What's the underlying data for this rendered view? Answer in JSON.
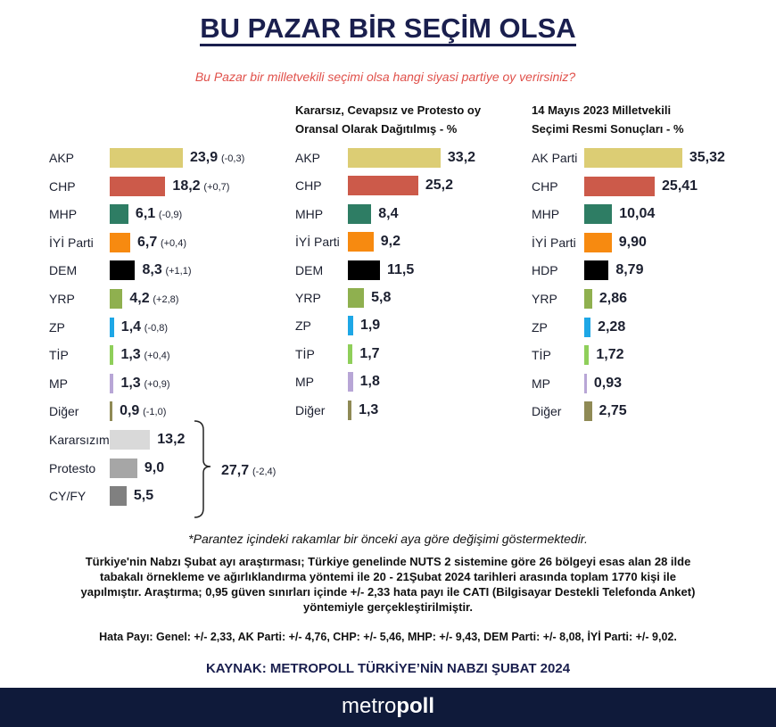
{
  "header": {
    "title": "BU PAZAR BİR SEÇİM OLSA",
    "question": "Bu Pazar bir milletvekili seçimi olsa hangi siyasi partiye oy verirsiniz?"
  },
  "chart_data": [
    {
      "type": "bar",
      "categories": [
        "AKP",
        "CHP",
        "MHP",
        "İYİ Parti",
        "DEM",
        "YRP",
        "ZP",
        "TİP",
        "MP",
        "Diğer",
        "Kararsızım",
        "Protesto",
        "CY/FY"
      ],
      "values": [
        23.9,
        18.2,
        6.1,
        6.7,
        8.3,
        4.2,
        1.4,
        1.3,
        1.3,
        0.9,
        13.2,
        9.0,
        5.5
      ],
      "value_labels": [
        "23,9",
        "18,2",
        "6,1",
        "6,7",
        "8,3",
        "4,2",
        "1,4",
        "1,3",
        "1,3",
        "0,9",
        "13,2",
        "9,0",
        "5,5"
      ],
      "changes": [
        "(-0,3)",
        "(+0,7)",
        "(-0,9)",
        "(+0,4)",
        "(+1,1)",
        "(+2,8)",
        "(-0,8)",
        "(+0,4)",
        "(+0,9)",
        "(-1,0)",
        null,
        null,
        null
      ],
      "colors": [
        "#dccd74",
        "#cc5a4a",
        "#2e7d64",
        "#f78a10",
        "#000000",
        "#8fb04f",
        "#1ea7e6",
        "#8fcf5a",
        "#b8a6d6",
        "#8f8a55",
        "#d9d9d9",
        "#a6a6a6",
        "#808080"
      ],
      "group_label": "27,7",
      "group_change": "(-2,4)"
    },
    {
      "type": "bar",
      "title": [
        "Kararsız, Cevapsız ve Protesto oy",
        "Oransal Olarak Dağıtılmış - %"
      ],
      "categories": [
        "AKP",
        "CHP",
        "MHP",
        "İYİ Parti",
        "DEM",
        "YRP",
        "ZP",
        "TİP",
        "MP",
        "Diğer"
      ],
      "values": [
        33.2,
        25.2,
        8.4,
        9.2,
        11.5,
        5.8,
        1.9,
        1.7,
        1.8,
        1.3
      ],
      "value_labels": [
        "33,2",
        "25,2",
        "8,4",
        "9,2",
        "11,5",
        "5,8",
        "1,9",
        "1,7",
        "1,8",
        "1,3"
      ],
      "colors": [
        "#dccd74",
        "#cc5a4a",
        "#2e7d64",
        "#f78a10",
        "#000000",
        "#8fb04f",
        "#1ea7e6",
        "#8fcf5a",
        "#b8a6d6",
        "#8f8a55"
      ]
    },
    {
      "type": "bar",
      "title": [
        "14 Mayıs 2023 Milletvekili",
        "Seçimi Resmi Sonuçları -  %"
      ],
      "categories": [
        "AK Parti",
        "CHP",
        "MHP",
        "İYİ Parti",
        "HDP",
        "YRP",
        "ZP",
        "TİP",
        "MP",
        "Diğer"
      ],
      "values": [
        35.32,
        25.41,
        10.04,
        9.9,
        8.79,
        2.86,
        2.28,
        1.72,
        0.93,
        2.75
      ],
      "value_labels": [
        "35,32",
        "25,41",
        "10,04",
        "9,90",
        "8,79",
        "2,86",
        "2,28",
        "1,72",
        "0,93",
        "2,75"
      ],
      "colors": [
        "#dccd74",
        "#cc5a4a",
        "#2e7d64",
        "#f78a10",
        "#000000",
        "#8fb04f",
        "#1ea7e6",
        "#8fcf5a",
        "#b8a6d6",
        "#8f8a55"
      ]
    }
  ],
  "footer": {
    "note": "*Parantez içindeki rakamlar bir önceki aya göre değişimi göstermektedir.",
    "method": [
      "Türkiye'nin Nabzı Şubat ayı araştırması; Türkiye genelinde NUTS 2 sistemine göre 26 bölgeyi esas alan 28 ilde",
      "tabakalı örnekleme ve ağırlıklandırma yöntemi ile 20 - 21Şubat  2024 tarihleri arasında toplam 1770 kişi ile",
      "yapılmıştır. Araştırma; 0,95 güven sınırları içinde +/- 2,33 hata payı ile CATI (Bilgisayar Destekli Telefonda Anket)",
      "yöntemiyle gerçekleştirilmiştir."
    ],
    "error": "Hata Payı: Genel: +/- 2,33, AK Parti: +/- 4,76, CHP: +/- 5,46, MHP: +/- 9,43, DEM Parti: +/- 8,08, İYİ Parti: +/- 9,02.",
    "source": "KAYNAK: METROPOLL TÜRKİYE’NİN NABZI ŞUBAT 2024",
    "brand_light": "metro",
    "brand_bold": "poll"
  }
}
